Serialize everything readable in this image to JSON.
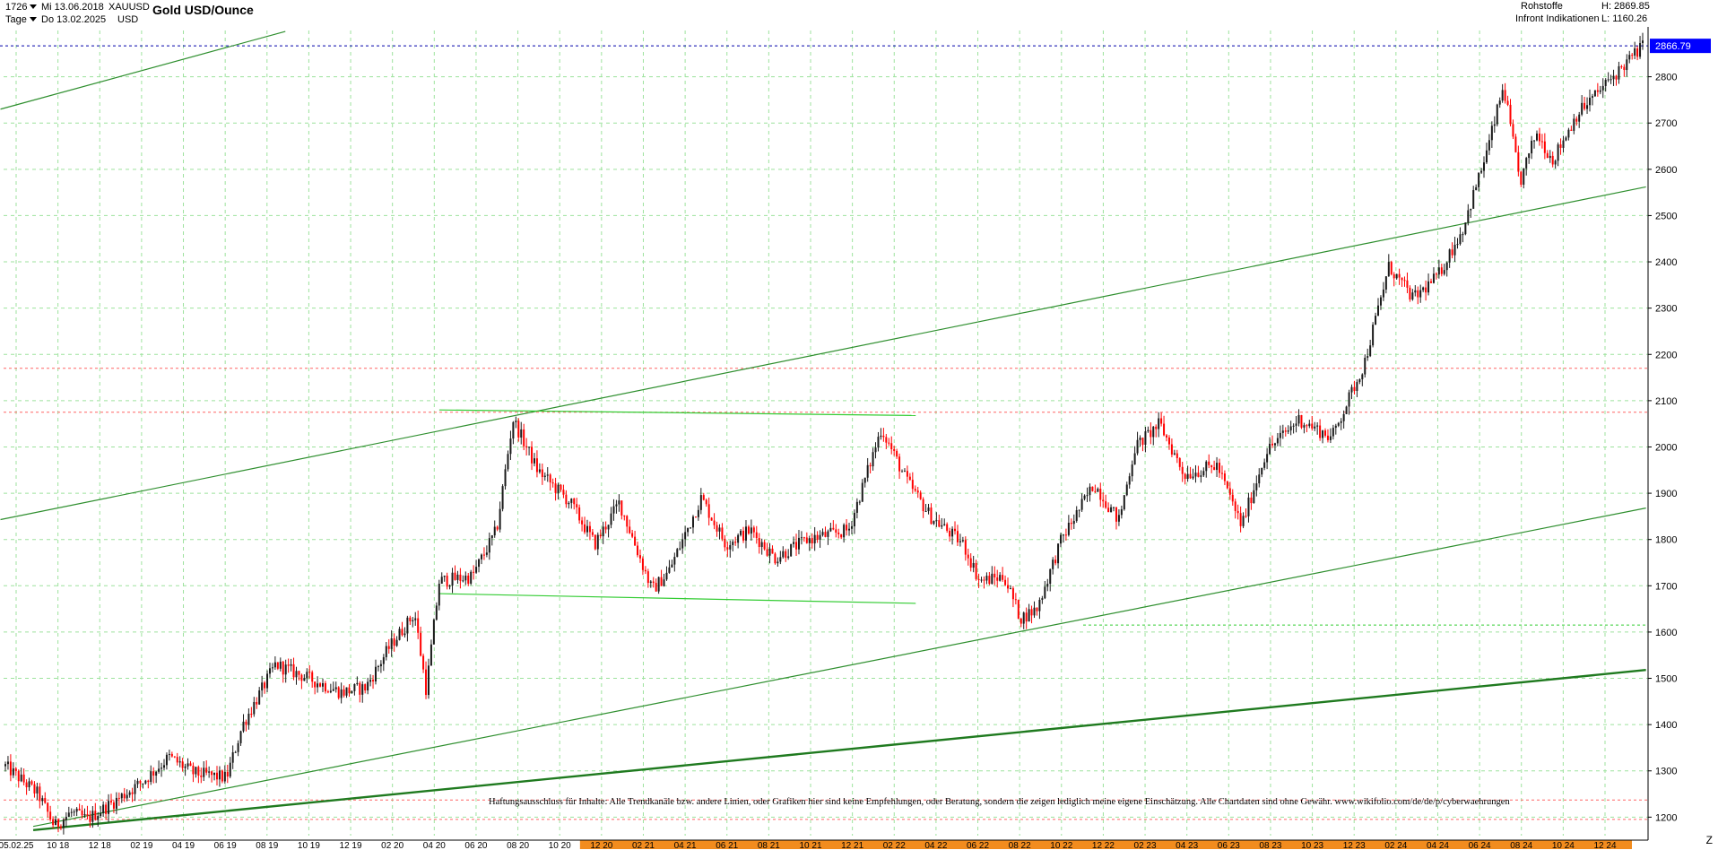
{
  "header": {
    "id_number": "1726",
    "timeframe": "Tage",
    "from_date": "Mi 13.06.2018",
    "to_date": "Do 13.02.2025",
    "symbol": "XAUUSD",
    "currency": "USD",
    "title": "Gold USD/Ounce",
    "category": "Rohstoffe",
    "source": "Infront Indikationen",
    "high_label": "H: 2869.85",
    "low_label": "L: 1160.26"
  },
  "disclaimer": "Haftungsausschluss für Inhalte: Alle Trendkanäle bzw. andere Linien, oder Grafiken hier sind keine Empfehlungen, oder Beratung, sondern die zeigen lediglich meine eigene Einschätzung. Alle Chartdaten sind ohne Gewähr. www.wikifolio.com/de/de/p/cyberwaehrungen",
  "z_label": "Z",
  "colors": {
    "up_candle": "#1a1a1a",
    "down_candle": "#ff0000",
    "trend_line": "#2f8f2f",
    "support_line": "#33cc33",
    "grid": "#9de29d",
    "ref_line_red": "#ff6666",
    "price_tag_bg": "#0000ff",
    "time_band_highlight": "#f28c1e"
  },
  "chart_data": {
    "type": "candlestick",
    "title": "Gold USD/Ounce",
    "ylim": [
      1160,
      2900
    ],
    "y_ticks": [
      1200,
      1300,
      1400,
      1500,
      1600,
      1700,
      1800,
      1900,
      2000,
      2100,
      2200,
      2300,
      2400,
      2500,
      2600,
      2700,
      2800
    ],
    "x_tick_labels": [
      "05.02.25",
      "10 18",
      "12 18",
      "02 19",
      "04 19",
      "06 19",
      "08 19",
      "10 19",
      "12 19",
      "02 20",
      "04 20",
      "06 20",
      "08 20",
      "10 20",
      "12 20",
      "02 21",
      "04 21",
      "06 21",
      "08 21",
      "10 21",
      "12 21",
      "02 22",
      "04 22",
      "06 22",
      "08 22",
      "10 22",
      "12 22",
      "02 23",
      "04 23",
      "06 23",
      "08 23",
      "10 23",
      "12 23",
      "02 24",
      "04 24",
      "06 24",
      "08 24",
      "10 24",
      "12 24"
    ],
    "highlighted_x_range": [
      "12 20",
      "12 24"
    ],
    "last_price": "2866.79",
    "grid": true,
    "price_path_approx": [
      {
        "t": 0,
        "y": 1310
      },
      {
        "t": 0.02,
        "y": 1250
      },
      {
        "t": 0.03,
        "y": 1180
      },
      {
        "t": 0.04,
        "y": 1210
      },
      {
        "t": 0.05,
        "y": 1195
      },
      {
        "t": 0.065,
        "y": 1230
      },
      {
        "t": 0.085,
        "y": 1280
      },
      {
        "t": 0.1,
        "y": 1330
      },
      {
        "t": 0.115,
        "y": 1295
      },
      {
        "t": 0.135,
        "y": 1285
      },
      {
        "t": 0.145,
        "y": 1400
      },
      {
        "t": 0.165,
        "y": 1530
      },
      {
        "t": 0.185,
        "y": 1500
      },
      {
        "t": 0.205,
        "y": 1470
      },
      {
        "t": 0.22,
        "y": 1480
      },
      {
        "t": 0.235,
        "y": 1570
      },
      {
        "t": 0.25,
        "y": 1640
      },
      {
        "t": 0.257,
        "y": 1475
      },
      {
        "t": 0.265,
        "y": 1710
      },
      {
        "t": 0.285,
        "y": 1720
      },
      {
        "t": 0.3,
        "y": 1820
      },
      {
        "t": 0.31,
        "y": 2060
      },
      {
        "t": 0.325,
        "y": 1950
      },
      {
        "t": 0.345,
        "y": 1880
      },
      {
        "t": 0.36,
        "y": 1790
      },
      {
        "t": 0.375,
        "y": 1880
      },
      {
        "t": 0.395,
        "y": 1690
      },
      {
        "t": 0.405,
        "y": 1730
      },
      {
        "t": 0.425,
        "y": 1890
      },
      {
        "t": 0.44,
        "y": 1790
      },
      {
        "t": 0.455,
        "y": 1820
      },
      {
        "t": 0.47,
        "y": 1760
      },
      {
        "t": 0.49,
        "y": 1800
      },
      {
        "t": 0.515,
        "y": 1820
      },
      {
        "t": 0.535,
        "y": 2040
      },
      {
        "t": 0.55,
        "y": 1930
      },
      {
        "t": 0.565,
        "y": 1850
      },
      {
        "t": 0.585,
        "y": 1790
      },
      {
        "t": 0.595,
        "y": 1710
      },
      {
        "t": 0.61,
        "y": 1720
      },
      {
        "t": 0.62,
        "y": 1630
      },
      {
        "t": 0.63,
        "y": 1650
      },
      {
        "t": 0.645,
        "y": 1800
      },
      {
        "t": 0.665,
        "y": 1920
      },
      {
        "t": 0.68,
        "y": 1840
      },
      {
        "t": 0.69,
        "y": 2000
      },
      {
        "t": 0.705,
        "y": 2050
      },
      {
        "t": 0.72,
        "y": 1940
      },
      {
        "t": 0.74,
        "y": 1960
      },
      {
        "t": 0.755,
        "y": 1830
      },
      {
        "t": 0.77,
        "y": 1990
      },
      {
        "t": 0.79,
        "y": 2060
      },
      {
        "t": 0.81,
        "y": 2020
      },
      {
        "t": 0.83,
        "y": 2180
      },
      {
        "t": 0.845,
        "y": 2390
      },
      {
        "t": 0.86,
        "y": 2320
      },
      {
        "t": 0.875,
        "y": 2370
      },
      {
        "t": 0.89,
        "y": 2470
      },
      {
        "t": 0.905,
        "y": 2640
      },
      {
        "t": 0.915,
        "y": 2780
      },
      {
        "t": 0.925,
        "y": 2570
      },
      {
        "t": 0.935,
        "y": 2680
      },
      {
        "t": 0.945,
        "y": 2620
      },
      {
        "t": 0.96,
        "y": 2720
      },
      {
        "t": 1.0,
        "y": 2867
      }
    ]
  }
}
